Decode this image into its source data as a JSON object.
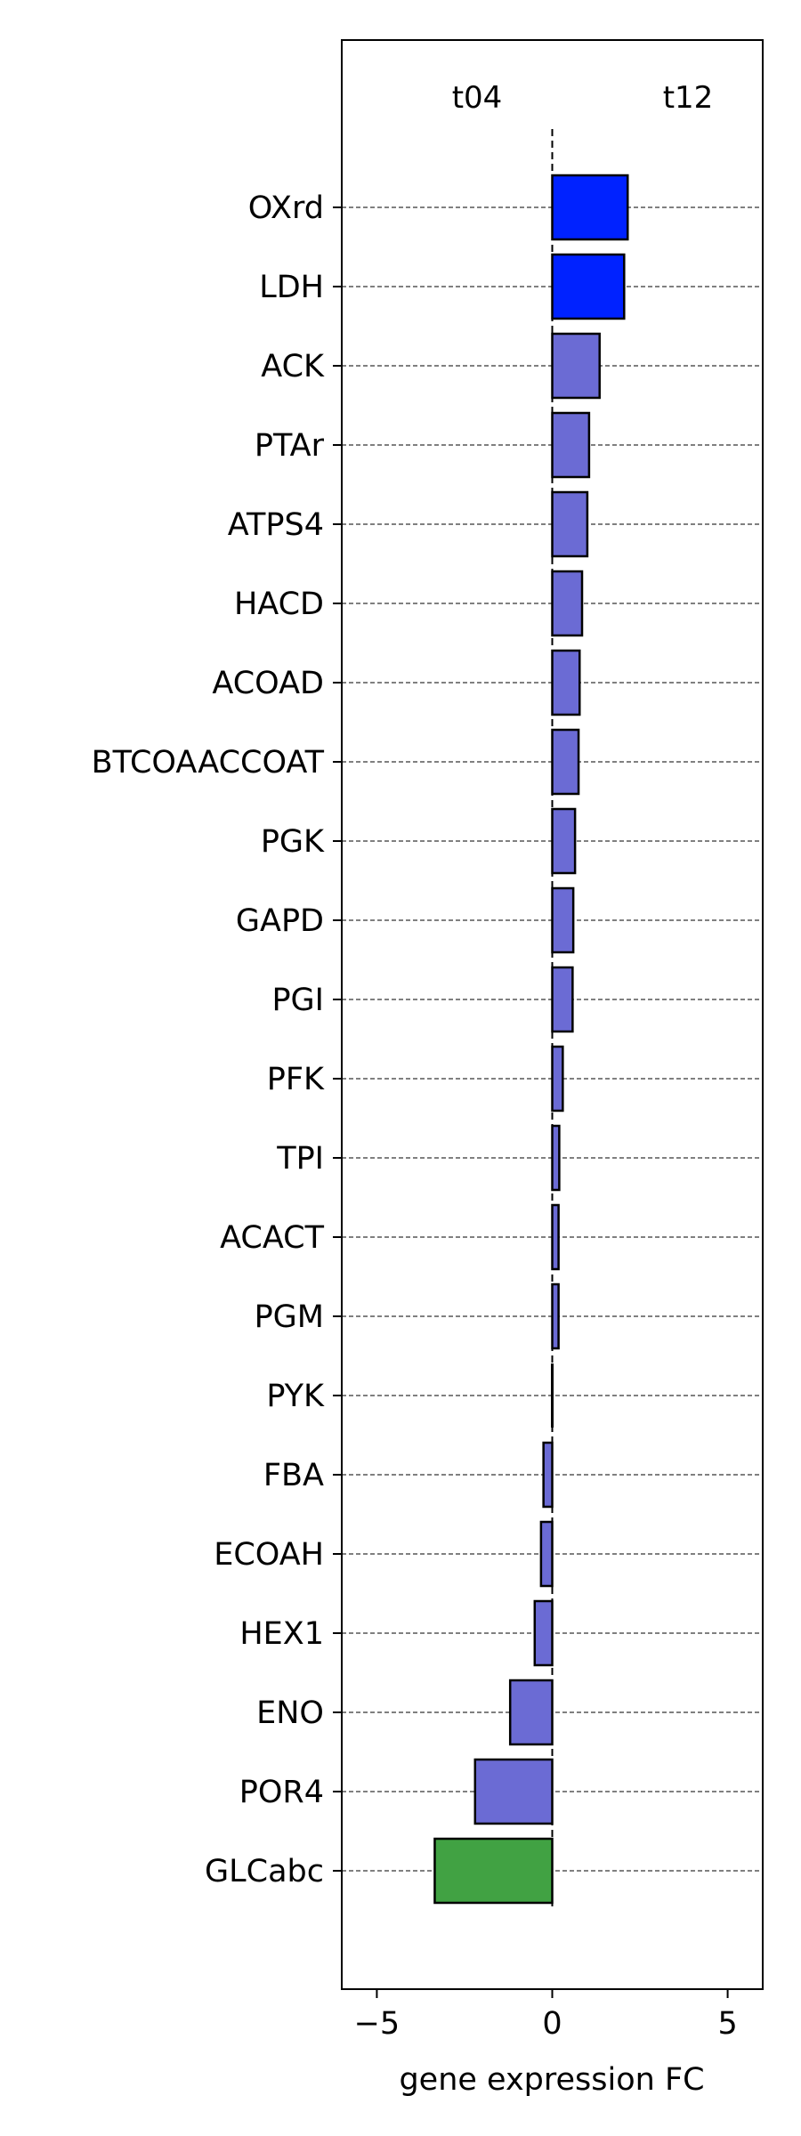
{
  "chart_data": {
    "type": "bar",
    "orientation": "horizontal",
    "xlabel": "gene expression FC",
    "ylabel": "",
    "title": "",
    "xlim": [
      -6,
      6
    ],
    "xticks": [
      -5,
      0,
      5
    ],
    "xtick_labels": [
      "−5",
      "0",
      "5"
    ],
    "grid": "horizontal dashed lines at each category",
    "annotations": {
      "left": "t04",
      "right": "t12"
    },
    "categories": [
      "OXrd",
      "LDH",
      "ACK",
      "PTAr",
      "ATPS4",
      "HACD",
      "ACOAD",
      "BTCOAACCOAT",
      "PGK",
      "GAPD",
      "PGI",
      "PFK",
      "TPI",
      "ACACT",
      "PGM",
      "PYK",
      "FBA",
      "ECOAH",
      "HEX1",
      "ENO",
      "POR4",
      "GLCabc"
    ],
    "values": [
      2.15,
      2.05,
      1.35,
      1.05,
      1.0,
      0.85,
      0.78,
      0.75,
      0.65,
      0.6,
      0.58,
      0.3,
      0.2,
      0.18,
      0.18,
      0.0,
      -0.25,
      -0.32,
      -0.5,
      -1.2,
      -2.2,
      -3.35
    ],
    "colors": [
      "#0022ff",
      "#0022ff",
      "#6b6bd4",
      "#6b6bd4",
      "#6b6bd4",
      "#6b6bd4",
      "#6b6bd4",
      "#6b6bd4",
      "#6b6bd4",
      "#6b6bd4",
      "#6b6bd4",
      "#6b6bd4",
      "#6b6bd4",
      "#6b6bd4",
      "#6b6bd4",
      "#6b6bd4",
      "#6b6bd4",
      "#6b6bd4",
      "#6b6bd4",
      "#6b6bd4",
      "#6b6bd4",
      "#41a243"
    ]
  }
}
